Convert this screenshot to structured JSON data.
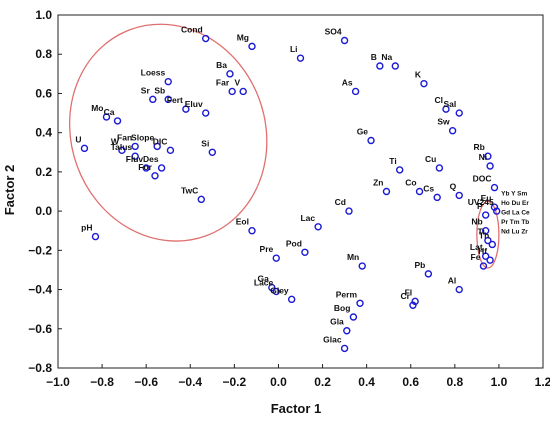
{
  "chart_data": {
    "type": "scatter",
    "title": "",
    "xlabel": "Factor 1",
    "ylabel": "Factor 2",
    "xlim": [
      -1.0,
      1.2
    ],
    "ylim": [
      -0.8,
      1.0
    ],
    "xticks": [
      "−1.0",
      "−0.8",
      "−0.6",
      "−0.4",
      "−0.2",
      "0.0",
      "0.2",
      "0.4",
      "0.6",
      "0.8",
      "1.0",
      "1.2"
    ],
    "yticks": [
      "−0.8",
      "−0.6",
      "−0.4",
      "−0.2",
      "0.0",
      "0.2",
      "0.4",
      "0.6",
      "0.8",
      "1.0"
    ],
    "grid": false,
    "marker_color": "#1a1ad6",
    "ellipse_color": "#e07070",
    "points": [
      {
        "label": "Cond",
        "x": -0.33,
        "y": 0.88
      },
      {
        "label": "Mg",
        "x": -0.12,
        "y": 0.84
      },
      {
        "label": "Li",
        "x": 0.1,
        "y": 0.78
      },
      {
        "label": "SO4",
        "x": 0.3,
        "y": 0.87
      },
      {
        "label": "B",
        "x": 0.46,
        "y": 0.74
      },
      {
        "label": "Na",
        "x": 0.53,
        "y": 0.74
      },
      {
        "label": "Ba",
        "x": -0.22,
        "y": 0.7
      },
      {
        "label": "K",
        "x": 0.66,
        "y": 0.65
      },
      {
        "label": "Loess",
        "x": -0.5,
        "y": 0.66
      },
      {
        "label": "Sr",
        "x": -0.57,
        "y": 0.57
      },
      {
        "label": "Sb",
        "x": -0.5,
        "y": 0.57
      },
      {
        "label": "Far",
        "x": -0.21,
        "y": 0.61
      },
      {
        "label": "V",
        "x": -0.16,
        "y": 0.61
      },
      {
        "label": "As",
        "x": 0.35,
        "y": 0.61
      },
      {
        "label": "Fert",
        "x": -0.42,
        "y": 0.52
      },
      {
        "label": "Cl",
        "x": 0.76,
        "y": 0.52
      },
      {
        "label": "Sal",
        "x": 0.82,
        "y": 0.5
      },
      {
        "label": "Eluv",
        "x": -0.33,
        "y": 0.5
      },
      {
        "label": "Mo",
        "x": -0.78,
        "y": 0.48
      },
      {
        "label": "Ca",
        "x": -0.73,
        "y": 0.46
      },
      {
        "label": "Sw",
        "x": 0.79,
        "y": 0.41
      },
      {
        "label": "Ge",
        "x": 0.42,
        "y": 0.36
      },
      {
        "label": "W",
        "x": -0.71,
        "y": 0.31
      },
      {
        "label": "Fan",
        "x": -0.65,
        "y": 0.33
      },
      {
        "label": "Talus",
        "x": -0.65,
        "y": 0.28
      },
      {
        "label": "Slope",
        "x": -0.55,
        "y": 0.33
      },
      {
        "label": "DIC",
        "x": -0.49,
        "y": 0.31
      },
      {
        "label": "Si",
        "x": -0.3,
        "y": 0.3
      },
      {
        "label": "U",
        "x": -0.88,
        "y": 0.32
      },
      {
        "label": "Rb",
        "x": 0.95,
        "y": 0.28
      },
      {
        "label": "Ni",
        "x": 0.96,
        "y": 0.23
      },
      {
        "label": "Cu",
        "x": 0.73,
        "y": 0.22
      },
      {
        "label": "Ti",
        "x": 0.55,
        "y": 0.21
      },
      {
        "label": "Des",
        "x": -0.53,
        "y": 0.22
      },
      {
        "label": "Fluv",
        "x": -0.6,
        "y": 0.22
      },
      {
        "label": "For",
        "x": -0.56,
        "y": 0.18
      },
      {
        "label": "DOC",
        "x": 0.98,
        "y": 0.12
      },
      {
        "label": "Zn",
        "x": 0.49,
        "y": 0.1
      },
      {
        "label": "Co",
        "x": 0.64,
        "y": 0.1
      },
      {
        "label": "Cs",
        "x": 0.72,
        "y": 0.07
      },
      {
        "label": "Q",
        "x": 0.82,
        "y": 0.08
      },
      {
        "label": "TwC",
        "x": -0.35,
        "y": 0.06
      },
      {
        "label": "Cd",
        "x": 0.32,
        "y": 0.0
      },
      {
        "label": "Eu",
        "x": 0.98,
        "y": 0.02
      },
      {
        "label": "UV245",
        "x": 0.99,
        "y": 0.0
      },
      {
        "label": "P",
        "x": 0.94,
        "y": -0.02
      },
      {
        "label": "Lac",
        "x": 0.18,
        "y": -0.08
      },
      {
        "label": "Eol",
        "x": -0.12,
        "y": -0.1
      },
      {
        "label": "Nb",
        "x": 0.94,
        "y": -0.1
      },
      {
        "label": "Ti",
        "x": 0.95,
        "y": -0.15
      },
      {
        "label": "Th",
        "x": 0.97,
        "y": -0.17
      },
      {
        "label": "Lat",
        "x": 0.94,
        "y": -0.23
      },
      {
        "label": "Hf",
        "x": 0.96,
        "y": -0.25
      },
      {
        "label": "Fe",
        "x": 0.93,
        "y": -0.28
      },
      {
        "label": "Pre",
        "x": -0.01,
        "y": -0.24
      },
      {
        "label": "Pod",
        "x": 0.12,
        "y": -0.21
      },
      {
        "label": "pH",
        "x": -0.83,
        "y": -0.13
      },
      {
        "label": "Mn",
        "x": 0.38,
        "y": -0.28
      },
      {
        "label": "Pb",
        "x": 0.68,
        "y": -0.32
      },
      {
        "label": "Ga",
        "x": -0.03,
        "y": -0.39
      },
      {
        "label": "Lace",
        "x": -0.01,
        "y": -0.41
      },
      {
        "label": "Gley",
        "x": 0.06,
        "y": -0.45
      },
      {
        "label": "Al",
        "x": 0.82,
        "y": -0.4
      },
      {
        "label": "Perm",
        "x": 0.37,
        "y": -0.47
      },
      {
        "label": "Fl",
        "x": 0.62,
        "y": -0.46
      },
      {
        "label": "Cr",
        "x": 0.61,
        "y": -0.48
      },
      {
        "label": "Bog",
        "x": 0.34,
        "y": -0.54
      },
      {
        "label": "Gla",
        "x": 0.31,
        "y": -0.61
      },
      {
        "label": "Glac",
        "x": 0.3,
        "y": -0.7
      }
    ],
    "cluster_labels": [
      "Yb Y Sm",
      "Ho Du Er",
      "Gd La Ce",
      "Pr Tm Tb",
      "Nd Lu Zr"
    ],
    "ellipses": [
      {
        "cx": -0.5,
        "cy": 0.4,
        "rx": 0.44,
        "ry": 0.56,
        "rotation_deg": -20
      },
      {
        "cx": 0.95,
        "cy": -0.12,
        "rx": 0.05,
        "ry": 0.17,
        "rotation_deg": 0
      }
    ]
  }
}
